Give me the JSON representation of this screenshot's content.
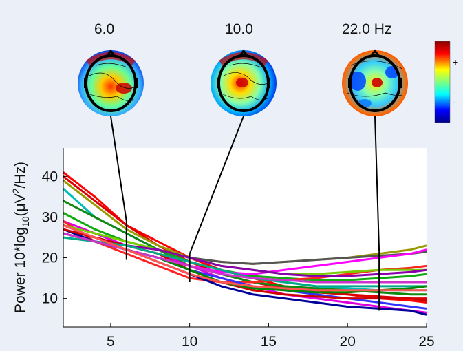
{
  "chart_data": {
    "type": "line",
    "title": "",
    "xlabel": "",
    "ylabel_parts": {
      "prefix": "Power 10*log",
      "sub": "10",
      "open": "(",
      "mu": "μ",
      "v": "V",
      "sup": "2",
      "tail": "/Hz)"
    },
    "xlim": [
      2,
      25
    ],
    "ylim": [
      3,
      47
    ],
    "x_ticks": [
      5,
      10,
      15,
      20,
      25
    ],
    "y_ticks": [
      10,
      20,
      30,
      40
    ],
    "grid": false,
    "x": [
      2,
      4,
      6,
      8,
      10,
      12,
      14,
      16,
      18,
      20,
      22,
      24,
      25
    ],
    "series": [
      {
        "color": "#ff0000",
        "values": [
          41,
          35,
          28,
          24,
          20,
          17,
          15,
          13,
          12,
          11,
          10,
          9.5,
          9
        ]
      },
      {
        "color": "#dd0000",
        "values": [
          40,
          34,
          28,
          23,
          19,
          16,
          14,
          12.5,
          11.5,
          11,
          10.5,
          10,
          10
        ]
      },
      {
        "color": "#999900",
        "values": [
          39,
          33,
          27,
          23,
          20,
          19,
          18.5,
          19,
          19.5,
          20,
          21,
          22,
          23
        ]
      },
      {
        "color": "#00bbbb",
        "values": [
          37,
          30,
          26,
          22,
          19,
          17,
          15,
          14,
          13,
          12.5,
          12,
          12,
          12
        ]
      },
      {
        "color": "#118811",
        "values": [
          34,
          30,
          26,
          22,
          18,
          16,
          14,
          13,
          12.5,
          12,
          11.5,
          11,
          11
        ]
      },
      {
        "color": "#11aa11",
        "values": [
          31,
          27,
          24,
          22,
          19,
          17,
          15.5,
          15,
          14.5,
          14.5,
          15,
          15.5,
          16
        ]
      },
      {
        "color": "#dd00dd",
        "values": [
          29,
          26,
          23,
          21,
          18,
          15,
          13,
          11,
          10,
          9,
          8,
          7,
          6.5
        ]
      },
      {
        "color": "#555555",
        "values": [
          27,
          25,
          23,
          22,
          20,
          19,
          18.5,
          19,
          19.5,
          20,
          20.5,
          21,
          21.5
        ]
      },
      {
        "color": "#ff00ff",
        "values": [
          28,
          25,
          22,
          20,
          18,
          16.5,
          16,
          17,
          18,
          19,
          20,
          21,
          22
        ]
      },
      {
        "color": "#ff2222",
        "values": [
          29,
          24,
          21,
          18,
          15,
          14,
          14,
          14.5,
          15,
          16,
          17,
          17.5,
          18
        ]
      },
      {
        "color": "#000099",
        "values": [
          27,
          24,
          22,
          19,
          16,
          13,
          11,
          10,
          9,
          8,
          7.5,
          7,
          6
        ]
      },
      {
        "color": "#3333ff",
        "values": [
          26,
          24,
          22,
          20,
          17,
          15,
          13,
          12,
          11,
          10,
          9,
          8,
          7.5
        ]
      },
      {
        "color": "#77cc00",
        "values": [
          28,
          26,
          24,
          22,
          20,
          18,
          17,
          16,
          16,
          16.5,
          17,
          17,
          17
        ]
      },
      {
        "color": "#8800aa",
        "values": [
          26,
          24,
          23,
          22,
          20,
          18,
          17,
          16,
          15.5,
          15.5,
          16,
          16.5,
          17
        ]
      },
      {
        "color": "#cc0000",
        "values": [
          27,
          25,
          23,
          21,
          17,
          14,
          12,
          11,
          10.5,
          10,
          10,
          10,
          9.5
        ]
      },
      {
        "color": "#00aa88",
        "values": [
          25,
          24,
          23,
          21,
          19,
          17,
          15,
          14,
          13,
          13,
          13,
          13,
          13
        ]
      },
      {
        "color": "#008800",
        "values": [
          26,
          24,
          22,
          20,
          17,
          14,
          12.5,
          12,
          11.5,
          11.5,
          12,
          12.5,
          13
        ]
      },
      {
        "color": "#cc33cc",
        "values": [
          26,
          24,
          22,
          20,
          18,
          16,
          15,
          14.5,
          14,
          14,
          14,
          14,
          14
        ]
      },
      {
        "color": "#ff5555",
        "values": [
          28,
          25,
          22,
          19,
          16,
          14,
          13,
          12.5,
          12,
          12,
          12,
          12,
          12
        ]
      }
    ],
    "markers": [
      {
        "freq": 6.0,
        "label": "6.0",
        "y_low": 19.5,
        "y_high": 29
      },
      {
        "freq": 10.0,
        "label": "10.0",
        "y_low": 14,
        "y_high": 21
      },
      {
        "freq": 22.0,
        "label": "22.0 Hz",
        "y_low": 7,
        "y_high": 21.5
      }
    ],
    "colorbar": {
      "plus": "+",
      "minus": "-"
    }
  }
}
